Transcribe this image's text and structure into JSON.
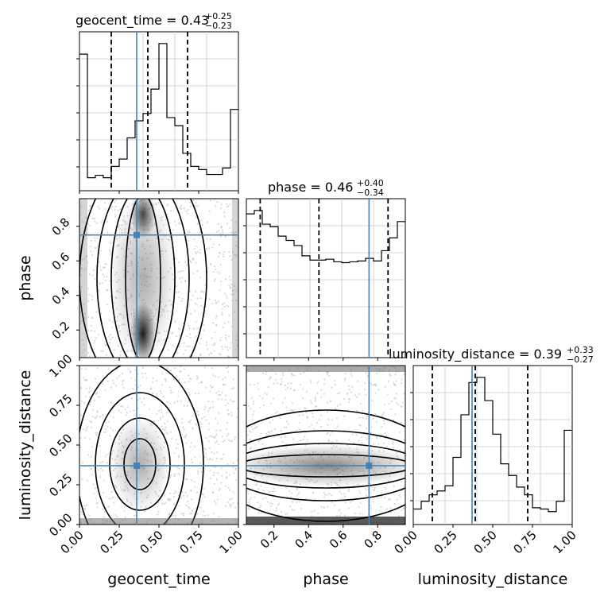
{
  "chart_data": {
    "type": "corner",
    "parameters": [
      "geocent_time",
      "phase",
      "luminosity_distance"
    ],
    "truths": {
      "geocent_time": 0.36,
      "phase": 0.75,
      "luminosity_distance": 0.37
    },
    "truth_color": "#4682b4",
    "histograms": [
      {
        "parameter": "geocent_time",
        "title_prefix": "geocent_time = 0.43",
        "err_plus": "+0.25",
        "err_minus": "−0.23",
        "range": [
          0,
          1
        ],
        "quantiles": [
          0.2,
          0.43,
          0.68
        ],
        "bins": 20,
        "values": [
          168,
          16,
          19,
          16,
          30,
          39,
          65,
          86,
          95,
          125,
          181,
          90,
          80,
          46,
          30,
          26,
          20,
          20,
          28,
          100
        ]
      },
      {
        "parameter": "phase",
        "title_prefix": "phase = 0.46",
        "err_plus": "+0.40",
        "err_minus": "−0.34",
        "range": [
          0.04,
          0.96
        ],
        "quantiles": [
          0.12,
          0.46,
          0.86
        ],
        "bins": 20,
        "values": [
          168,
          172,
          156,
          153,
          142,
          137,
          131,
          119,
          114,
          114,
          115,
          112,
          111,
          112,
          113,
          116,
          113,
          125,
          140,
          159
        ]
      },
      {
        "parameter": "luminosity_distance",
        "title_prefix": "luminosity_distance = 0.39",
        "err_plus": "+0.33",
        "err_minus": "−0.27",
        "range": [
          0,
          1
        ],
        "quantiles": [
          0.12,
          0.39,
          0.72
        ],
        "bins": 20,
        "values": [
          12,
          18,
          23,
          26,
          30,
          52,
          85,
          110,
          114,
          96,
          70,
          47,
          38,
          29,
          23,
          13,
          12,
          10,
          18,
          73
        ]
      }
    ],
    "panels_2d": [
      {
        "x": "geocent_time",
        "y": "phase",
        "xlim": [
          0,
          1
        ],
        "ylim": [
          0.04,
          0.96
        ],
        "density_peak": [
          0.4,
          0.15
        ]
      },
      {
        "x": "geocent_time",
        "y": "luminosity_distance",
        "xlim": [
          0,
          1
        ],
        "ylim": [
          0,
          1
        ],
        "density_peak": [
          0.38,
          0.38
        ]
      },
      {
        "x": "phase",
        "y": "luminosity_distance",
        "xlim": [
          0.04,
          0.96
        ],
        "ylim": [
          0,
          1
        ],
        "density_peak": [
          0.5,
          0.37
        ]
      }
    ],
    "axis_labels": {
      "x": [
        "geocent_time",
        "phase",
        "luminosity_distance"
      ],
      "y": [
        "phase",
        "luminosity_distance"
      ]
    },
    "ticks": {
      "geocent_time": [
        "0.00",
        "0.25",
        "0.50",
        "0.75",
        "1.00"
      ],
      "luminosity_distance": [
        "0.00",
        "0.25",
        "0.50",
        "0.75",
        "1.00"
      ],
      "phase": [
        "0.2",
        "0.4",
        "0.6",
        "0.8"
      ]
    },
    "grid": true
  }
}
